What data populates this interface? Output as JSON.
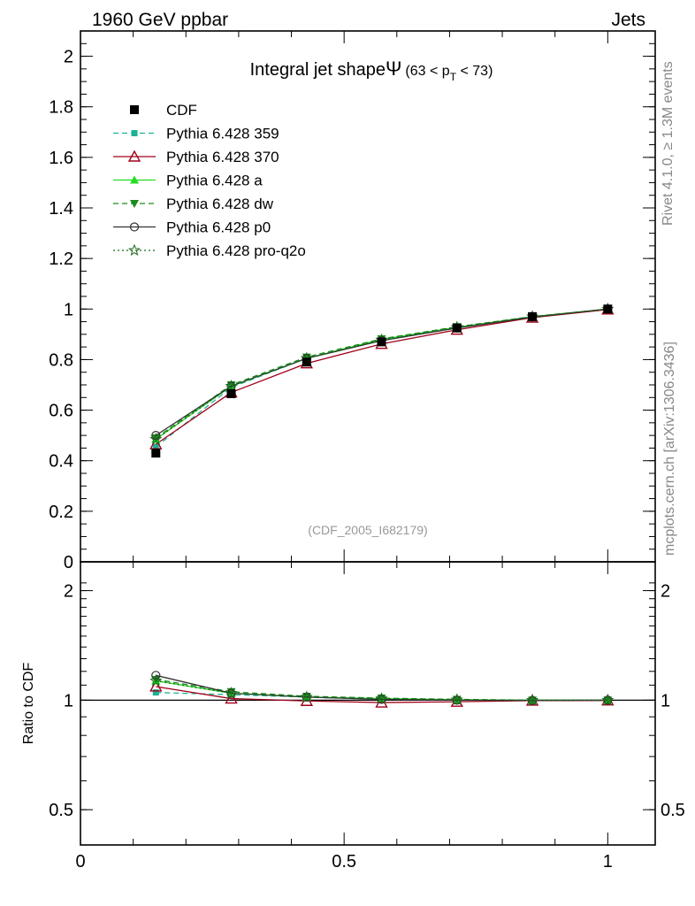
{
  "header": {
    "left_title": "1960 GeV ppbar",
    "right_title": "Jets",
    "plot_title_main": "Integral jet shape",
    "plot_title_symbol": "Ψ",
    "plot_title_range_prefix": "(63 < p",
    "plot_title_range_sub": "T",
    "plot_title_range_suffix": " < 73)"
  },
  "side_labels": {
    "rivet": "Rivet 4.1.0, ≥ 1.3M events",
    "mcplots": "mcplots.cern.ch [arXiv:1306.3436]"
  },
  "watermark": "(CDF_2005_I682179)",
  "chart_data": [
    {
      "type": "line",
      "title": "Integral jet shape Ψ (63 < pT < 73)",
      "xlim": [
        0,
        1.09
      ],
      "ylim": [
        0,
        2.1
      ],
      "yticks": [
        "0",
        "0.2",
        "0.4",
        "0.6",
        "0.8",
        "1",
        "1.2",
        "1.4",
        "1.6",
        "1.8",
        "2"
      ],
      "x": [
        0.143,
        0.286,
        0.429,
        0.571,
        0.714,
        0.857,
        1.0
      ],
      "series": [
        {
          "name": "CDF",
          "color": "#000000",
          "style": "none",
          "marker": "square",
          "values": [
            0.43,
            0.665,
            0.79,
            0.87,
            0.925,
            0.97,
            1.0
          ]
        },
        {
          "name": "Pythia 6.428 359",
          "color": "#1ab394",
          "style": "dashed",
          "marker": "square-small",
          "values": [
            0.455,
            0.69,
            0.805,
            0.875,
            0.925,
            0.968,
            1.0
          ]
        },
        {
          "name": "Pythia 6.428 370",
          "color": "#a0001a",
          "style": "solid",
          "marker": "triangle-open",
          "values": [
            0.465,
            0.67,
            0.785,
            0.862,
            0.918,
            0.966,
            0.998
          ]
        },
        {
          "name": "Pythia 6.428 a",
          "color": "#22dd22",
          "style": "solid",
          "marker": "triangle-filled",
          "values": [
            0.485,
            0.695,
            0.805,
            0.88,
            0.928,
            0.97,
            1.0
          ]
        },
        {
          "name": "Pythia 6.428 dw",
          "color": "#1a8c1a",
          "style": "dashed",
          "marker": "triangle-down",
          "values": [
            0.49,
            0.7,
            0.81,
            0.882,
            0.93,
            0.97,
            1.0
          ]
        },
        {
          "name": "Pythia 6.428 p0",
          "color": "#333333",
          "style": "solid",
          "marker": "circle-open",
          "values": [
            0.5,
            0.695,
            0.805,
            0.875,
            0.925,
            0.968,
            1.0
          ]
        },
        {
          "name": "Pythia 6.428 pro-q2o",
          "color": "#1a6b1a",
          "style": "dotted",
          "marker": "star",
          "values": [
            0.485,
            0.695,
            0.805,
            0.878,
            0.928,
            0.97,
            1.0
          ]
        }
      ]
    },
    {
      "type": "line",
      "ylabel": "Ratio to CDF",
      "xlabel": "",
      "xlim": [
        0,
        1.09
      ],
      "ylim": [
        0.4,
        2.4
      ],
      "yscale": "log",
      "xticks": [
        "0",
        "0.5",
        "1"
      ],
      "yticks": [
        "0.5",
        "1",
        "2"
      ],
      "x": [
        0.143,
        0.286,
        0.429,
        0.571,
        0.714,
        0.857,
        1.0
      ],
      "series": [
        {
          "name": "Pythia 6.428 359",
          "values": [
            1.05,
            1.035,
            1.02,
            1.005,
            1.0,
            0.998,
            1.0
          ]
        },
        {
          "name": "Pythia 6.428 370",
          "values": [
            1.09,
            1.01,
            0.995,
            0.985,
            0.99,
            0.997,
            0.998
          ]
        },
        {
          "name": "Pythia 6.428 a",
          "values": [
            1.13,
            1.045,
            1.02,
            1.01,
            1.003,
            1.0,
            1.0
          ]
        },
        {
          "name": "Pythia 6.428 dw",
          "values": [
            1.14,
            1.055,
            1.025,
            1.013,
            1.005,
            1.0,
            1.0
          ]
        },
        {
          "name": "Pythia 6.428 p0",
          "values": [
            1.17,
            1.045,
            1.02,
            1.005,
            1.0,
            0.998,
            1.0
          ]
        },
        {
          "name": "Pythia 6.428 pro-q2o",
          "values": [
            1.13,
            1.045,
            1.02,
            1.01,
            1.003,
            1.0,
            1.0
          ]
        }
      ]
    }
  ]
}
